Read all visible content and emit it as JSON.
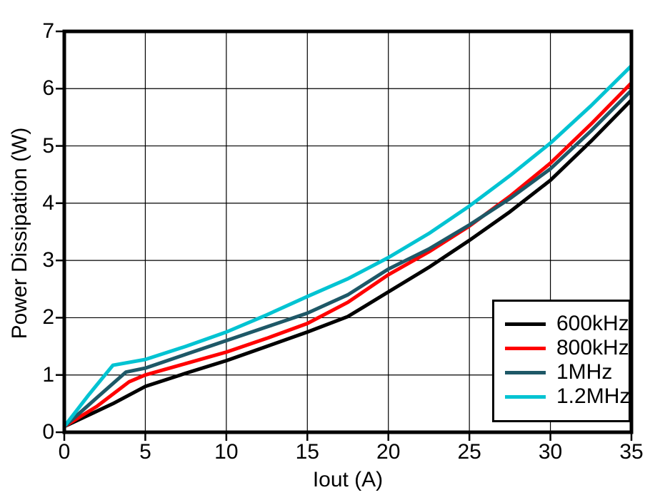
{
  "chart_data": {
    "type": "line",
    "title": "",
    "xlabel": "Iout (A)",
    "ylabel": "Power Dissipation (W)",
    "xlim": [
      0,
      35
    ],
    "ylim": [
      0,
      7
    ],
    "x_ticks": [
      0,
      5,
      10,
      15,
      20,
      25,
      30,
      35
    ],
    "y_ticks": [
      0,
      1,
      2,
      3,
      4,
      5,
      6,
      7
    ],
    "grid": true,
    "legend_position": "inside-bottom-right",
    "axis_color": "#000000",
    "gridline_color": "#000000",
    "series": [
      {
        "name": "600kHz",
        "color": "#000000",
        "points": [
          [
            0,
            0.1
          ],
          [
            3,
            0.5
          ],
          [
            5,
            0.8
          ],
          [
            7.5,
            1.03
          ],
          [
            10,
            1.25
          ],
          [
            12.5,
            1.5
          ],
          [
            15,
            1.75
          ],
          [
            17.5,
            2.02
          ],
          [
            20,
            2.45
          ],
          [
            22.5,
            2.88
          ],
          [
            25,
            3.35
          ],
          [
            27.5,
            3.85
          ],
          [
            30,
            4.4
          ],
          [
            32.5,
            5.08
          ],
          [
            35,
            5.8
          ]
        ]
      },
      {
        "name": "800kHz",
        "color": "#ff0000",
        "points": [
          [
            0,
            0.1
          ],
          [
            2,
            0.45
          ],
          [
            4,
            0.88
          ],
          [
            5,
            1.0
          ],
          [
            7.5,
            1.2
          ],
          [
            10,
            1.4
          ],
          [
            12.5,
            1.64
          ],
          [
            15,
            1.9
          ],
          [
            17.5,
            2.27
          ],
          [
            20,
            2.75
          ],
          [
            22.5,
            3.15
          ],
          [
            25,
            3.6
          ],
          [
            27.5,
            4.12
          ],
          [
            30,
            4.7
          ],
          [
            32.5,
            5.38
          ],
          [
            35,
            6.1
          ]
        ]
      },
      {
        "name": "1MHz",
        "color": "#1e5867",
        "points": [
          [
            0,
            0.1
          ],
          [
            2,
            0.6
          ],
          [
            3.8,
            1.05
          ],
          [
            5,
            1.12
          ],
          [
            7.5,
            1.36
          ],
          [
            10,
            1.6
          ],
          [
            12.5,
            1.84
          ],
          [
            15,
            2.08
          ],
          [
            17.5,
            2.4
          ],
          [
            20,
            2.85
          ],
          [
            22.5,
            3.2
          ],
          [
            25,
            3.62
          ],
          [
            27.5,
            4.08
          ],
          [
            30,
            4.6
          ],
          [
            32.5,
            5.26
          ],
          [
            35,
            5.97
          ]
        ]
      },
      {
        "name": "1.2MHz",
        "color": "#00c3d2",
        "points": [
          [
            0,
            0.1
          ],
          [
            1.5,
            0.65
          ],
          [
            3,
            1.17
          ],
          [
            5,
            1.27
          ],
          [
            7.5,
            1.5
          ],
          [
            10,
            1.75
          ],
          [
            12.5,
            2.05
          ],
          [
            15,
            2.37
          ],
          [
            17.5,
            2.68
          ],
          [
            20,
            3.05
          ],
          [
            22.5,
            3.47
          ],
          [
            25,
            3.95
          ],
          [
            27.5,
            4.48
          ],
          [
            30,
            5.05
          ],
          [
            32.5,
            5.7
          ],
          [
            35,
            6.4
          ]
        ]
      }
    ]
  }
}
